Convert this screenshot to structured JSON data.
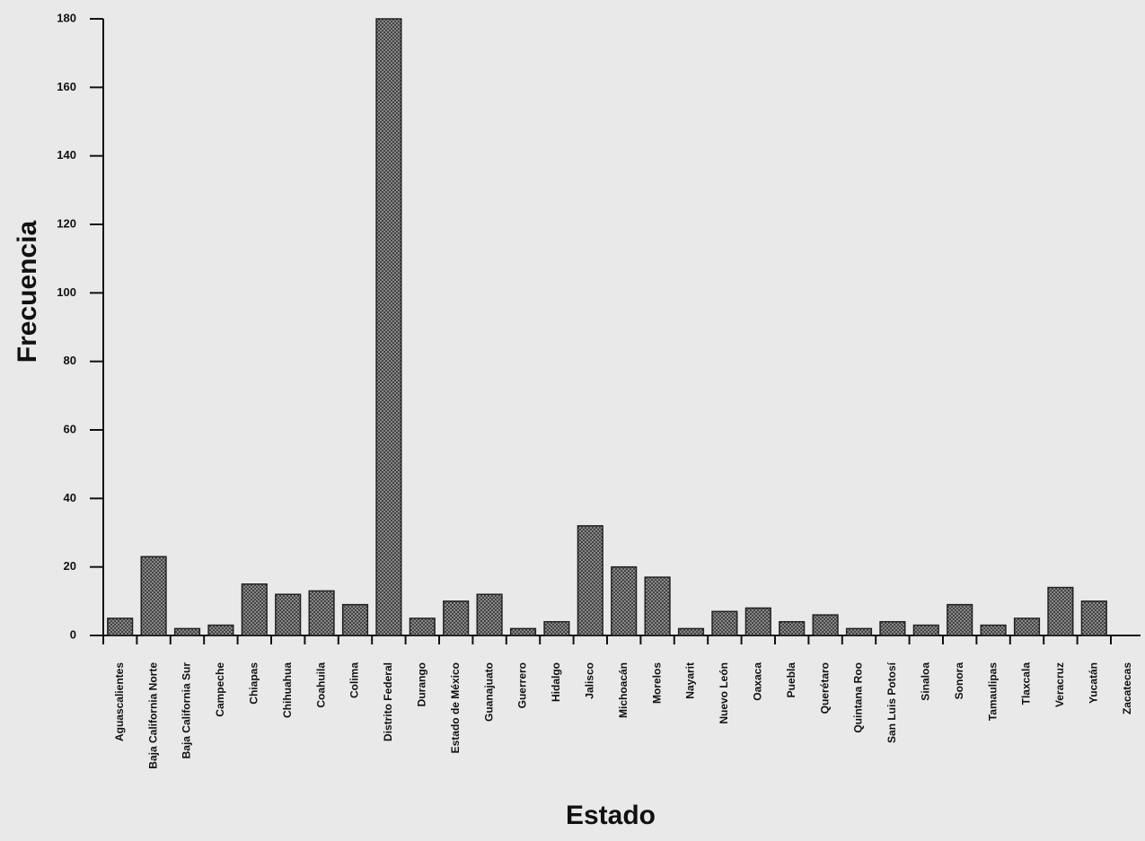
{
  "chart_data": {
    "type": "bar",
    "xlabel": "Estado",
    "ylabel": "Frecuencia",
    "categories": [
      "Aguascalientes",
      "Baja California Norte",
      "Baja California Sur",
      "Campeche",
      "Chiapas",
      "Chihuahua",
      "Coahuila",
      "Colima",
      "Distrito Federal",
      "Durango",
      "Estado de México",
      "Guanajuato",
      "Guerrero",
      "Hidalgo",
      "Jalisco",
      "Michoacán",
      "Morelos",
      "Nayarit",
      "Nuevo León",
      "Oaxaca",
      "Puebla",
      "Querétaro",
      "Quintana Roo",
      "San Luis Potosí",
      "Sinaloa",
      "Sonora",
      "Tamaulipas",
      "Tlaxcala",
      "Veracruz",
      "Yucatán",
      "Zacatecas"
    ],
    "values": [
      5,
      23,
      2,
      3,
      15,
      12,
      13,
      9,
      180,
      5,
      10,
      12,
      2,
      4,
      32,
      20,
      17,
      2,
      7,
      8,
      4,
      6,
      2,
      4,
      3,
      9,
      3,
      5,
      14,
      10,
      0
    ],
    "color": "#8a8a8a",
    "ylim": [
      0,
      180
    ],
    "yticks": [
      0,
      20,
      40,
      60,
      80,
      100,
      120,
      140,
      160,
      180
    ],
    "grid": false
  }
}
